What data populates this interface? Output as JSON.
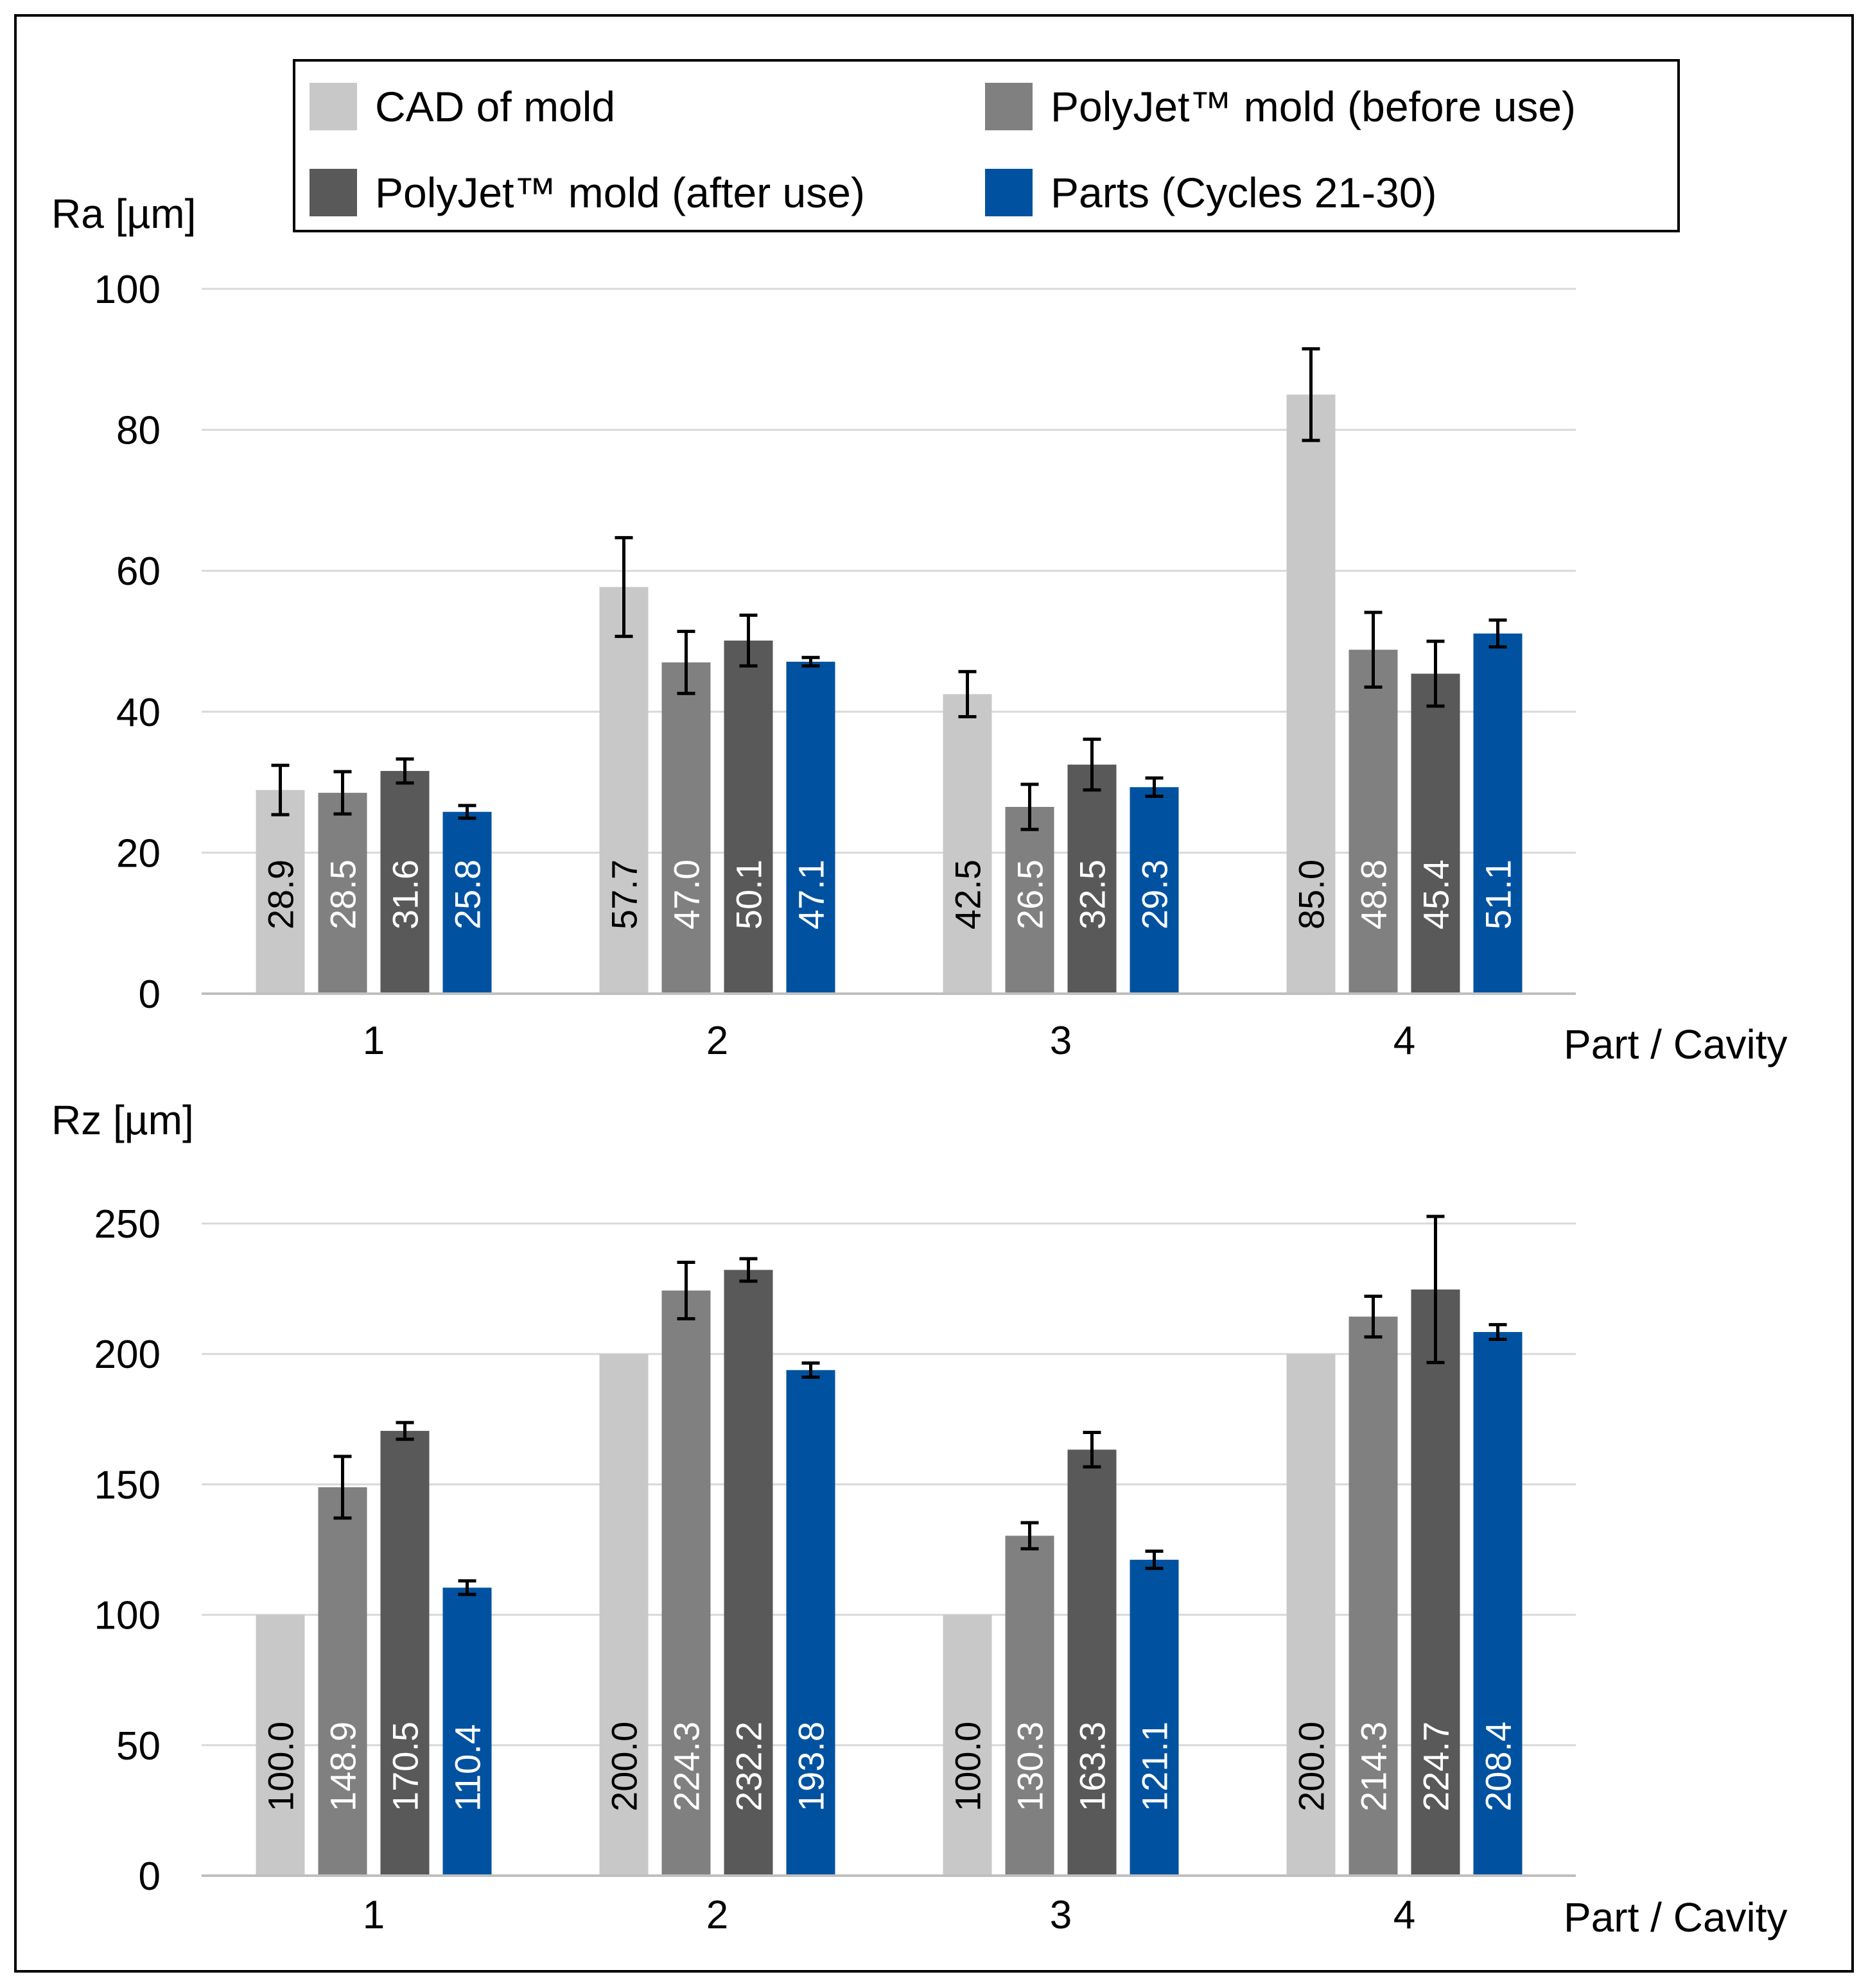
{
  "legend": [
    {
      "label": "CAD of mold",
      "color": "#c8c8c8"
    },
    {
      "label": "PolyJet™ mold (before use)",
      "color": "#808080"
    },
    {
      "label": "PolyJet™ mold (after use)",
      "color": "#595959"
    },
    {
      "label": "Parts (Cycles 21-30)",
      "color": "#0052a0"
    }
  ],
  "label_colors": [
    "#000000",
    "#ffffff",
    "#ffffff",
    "#ffffff"
  ],
  "chart_data": [
    {
      "type": "bar",
      "ylabel": "Ra [µm]",
      "xlabel": "Part / Cavity",
      "categories": [
        "1",
        "2",
        "3",
        "4"
      ],
      "ylim": [
        0,
        100
      ],
      "yticks": [
        0,
        20,
        40,
        60,
        80,
        100
      ],
      "grid": true,
      "legend_position": "top",
      "series": [
        {
          "name": "CAD of mold",
          "values": [
            28.9,
            57.7,
            42.5,
            85.0
          ],
          "labels": [
            "28.9",
            "57.7",
            "42.5",
            "85.0"
          ],
          "errors": [
            3.5,
            7.0,
            3.2,
            6.5
          ]
        },
        {
          "name": "PolyJet™ mold (before use)",
          "values": [
            28.5,
            47.0,
            26.5,
            48.8
          ],
          "labels": [
            "28.5",
            "47.0",
            "26.5",
            "48.8"
          ],
          "errors": [
            3.0,
            4.4,
            3.2,
            5.3
          ]
        },
        {
          "name": "PolyJet™ mold (after use)",
          "values": [
            31.6,
            50.1,
            32.5,
            45.4
          ],
          "labels": [
            "31.6",
            "50.1",
            "32.5",
            "45.4"
          ],
          "errors": [
            1.7,
            3.6,
            3.6,
            4.6
          ]
        },
        {
          "name": "Parts (Cycles 21-30)",
          "values": [
            25.8,
            47.1,
            29.3,
            51.1
          ],
          "labels": [
            "25.8",
            "47.1",
            "29.3",
            "51.1"
          ],
          "errors": [
            0.9,
            0.6,
            1.3,
            1.9
          ]
        }
      ]
    },
    {
      "type": "bar",
      "ylabel": "Rz [µm]",
      "xlabel": "Part / Cavity",
      "categories": [
        "1",
        "2",
        "3",
        "4"
      ],
      "ylim": [
        0,
        250
      ],
      "yticks": [
        0,
        50,
        100,
        150,
        200,
        250
      ],
      "grid": true,
      "series": [
        {
          "name": "CAD of mold",
          "values": [
            100.0,
            200.0,
            100.0,
            200.0
          ],
          "labels": [
            "100.0",
            "200.0",
            "100.0",
            "200.0"
          ],
          "errors": [
            0,
            0,
            0,
            0
          ]
        },
        {
          "name": "PolyJet™ mold (before use)",
          "values": [
            148.9,
            224.3,
            130.3,
            214.3
          ],
          "labels": [
            "148.9",
            "224.3",
            "130.3",
            "214.3"
          ],
          "errors": [
            11.8,
            10.8,
            5.0,
            7.8
          ]
        },
        {
          "name": "PolyJet™ mold (after use)",
          "values": [
            170.5,
            232.2,
            163.3,
            224.7
          ],
          "labels": [
            "170.5",
            "232.2",
            "163.3",
            "224.7"
          ],
          "errors": [
            3.2,
            4.3,
            6.6,
            28.0
          ]
        },
        {
          "name": "Parts (Cycles 21-30)",
          "values": [
            110.4,
            193.8,
            121.1,
            208.4
          ],
          "labels": [
            "110.4",
            "193.8",
            "121.1",
            "208.4"
          ],
          "errors": [
            2.6,
            2.7,
            3.3,
            2.8
          ]
        }
      ]
    }
  ]
}
